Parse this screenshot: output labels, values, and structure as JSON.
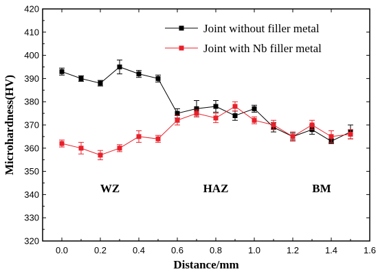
{
  "chart_data": {
    "type": "line",
    "title": "",
    "xlabel": "Distance/mm",
    "ylabel": "Microhardness(HV)",
    "xlim": [
      -0.1,
      1.6
    ],
    "ylim": [
      320,
      420
    ],
    "xticks": [
      "0.0",
      "0.2",
      "0.4",
      "0.6",
      "0.8",
      "1.0",
      "1.2",
      "1.4",
      "1.6"
    ],
    "yticks": [
      "320",
      "330",
      "340",
      "350",
      "360",
      "370",
      "380",
      "390",
      "400",
      "410",
      "420"
    ],
    "grid": false,
    "legend_position": "top-right",
    "annotations": [
      {
        "text": "WZ",
        "x": 0.25,
        "y": 341
      },
      {
        "text": "HAZ",
        "x": 0.8,
        "y": 341
      },
      {
        "text": "BM",
        "x": 1.35,
        "y": 341
      }
    ],
    "series": [
      {
        "name": "Joint without filler metal",
        "color": "#000000",
        "marker": "square",
        "x": [
          0.0,
          0.1,
          0.2,
          0.3,
          0.4,
          0.5,
          0.6,
          0.7,
          0.8,
          0.9,
          1.0,
          1.1,
          1.2,
          1.3,
          1.4,
          1.5
        ],
        "y": [
          393,
          390,
          388,
          395,
          392,
          390,
          375,
          377,
          378,
          374,
          377,
          369,
          365,
          368,
          363,
          367
        ],
        "err": [
          1.5,
          1.2,
          1.2,
          3.0,
          1.5,
          1.5,
          2.0,
          3.5,
          2.5,
          2.0,
          1.5,
          2.0,
          1.5,
          2.0,
          1.0,
          3.0
        ]
      },
      {
        "name": "Joint with Nb filler metal",
        "color": "#e8202a",
        "marker": "square",
        "x": [
          0.0,
          0.1,
          0.2,
          0.3,
          0.4,
          0.5,
          0.6,
          0.7,
          0.8,
          0.9,
          1.0,
          1.1,
          1.2,
          1.3,
          1.4,
          1.5
        ],
        "y": [
          362,
          360,
          357,
          360,
          365,
          364,
          372,
          375,
          373,
          378,
          372,
          370,
          365,
          370,
          365,
          366
        ],
        "err": [
          1.5,
          2.5,
          2.0,
          1.5,
          2.5,
          1.5,
          2.0,
          1.5,
          2.0,
          2.0,
          1.5,
          2.0,
          2.0,
          2.0,
          2.5,
          2.0
        ]
      }
    ]
  }
}
